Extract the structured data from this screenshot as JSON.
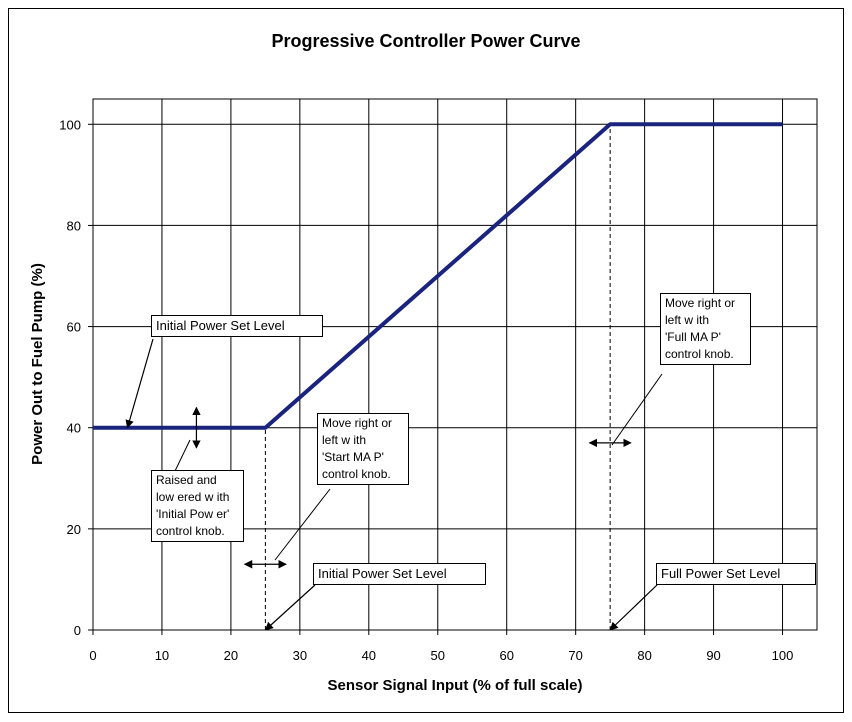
{
  "chart_data": {
    "type": "line",
    "title": "Progressive Controller Power Curve",
    "xlabel": "Sensor Signal Input (% of full scale)",
    "ylabel": "Power Out to Fuel Pump (%)",
    "xlim": [
      0,
      105
    ],
    "ylim": [
      0,
      105
    ],
    "xticks": [
      0,
      10,
      20,
      30,
      40,
      50,
      60,
      70,
      80,
      90,
      100
    ],
    "yticks": [
      0,
      20,
      40,
      60,
      80,
      100
    ],
    "grid": true,
    "series": [
      {
        "name": "Power Curve",
        "x": [
          0,
          25,
          75,
          100
        ],
        "y": [
          40,
          40,
          100,
          100
        ],
        "color": "#1a237e"
      }
    ],
    "reference_lines": [
      {
        "name": "start-map-line",
        "x": 25,
        "y_from": 0,
        "y_to": 40
      },
      {
        "name": "full-map-line",
        "x": 75,
        "y_from": 0,
        "y_to": 100
      }
    ],
    "annotations": {
      "initial_level_top": {
        "lines": [
          "Initial Power Set Level"
        ],
        "pointer": [
          5,
          40
        ]
      },
      "raised_lowered": {
        "lines": [
          "Raised and",
          "low ered w ith",
          "'Initial Pow er'",
          "control knob."
        ],
        "arrow_x": 15,
        "arrow_y": [
          36,
          44
        ]
      },
      "start_map": {
        "lines": [
          "Move right or",
          "left w ith",
          "'Start MA P'",
          "control knob."
        ],
        "arrow_x": [
          22,
          28
        ],
        "arrow_y": 13
      },
      "initial_level_bottom": {
        "lines": [
          "Initial Power Set Level"
        ],
        "pointer": [
          25,
          0
        ]
      },
      "full_map": {
        "lines": [
          "Move right or",
          "left  w ith",
          "'Full MA P'",
          "control knob."
        ],
        "arrow_x": [
          72,
          78
        ],
        "arrow_y": 37
      },
      "full_level": {
        "lines": [
          "Full Power Set Level"
        ],
        "pointer": [
          75,
          0
        ]
      }
    }
  }
}
